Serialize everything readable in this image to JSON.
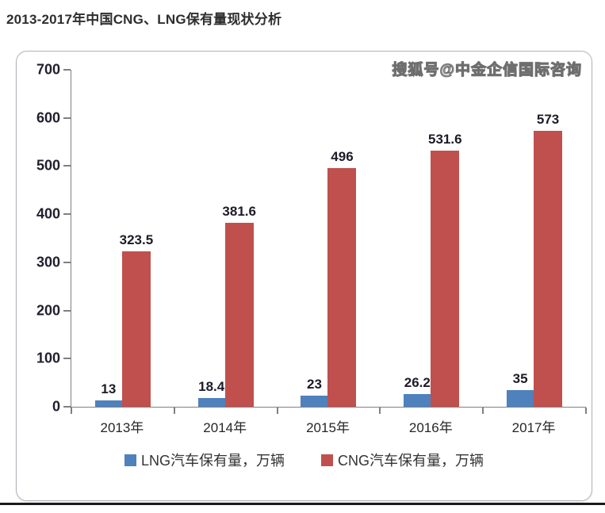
{
  "page": {
    "title": "2013-2017年中国CNG、LNG保有量现状分析",
    "watermark": "搜狐号@中金企信国际咨询"
  },
  "chart_data": {
    "type": "bar",
    "title": "2013-2017年中国CNG、LNG保有量现状分析",
    "categories": [
      "2013年",
      "2014年",
      "2015年",
      "2016年",
      "2017年"
    ],
    "series": [
      {
        "name": "LNG汽车保有量，万辆",
        "color": "#4F81BD",
        "values": [
          13,
          18.4,
          23,
          26.2,
          35
        ]
      },
      {
        "name": "CNG汽车保有量，万辆",
        "color": "#C0504D",
        "values": [
          323.5,
          381.6,
          496,
          531.6,
          573
        ]
      }
    ],
    "data_labels": [
      "13",
      "18.4",
      "23",
      "26.2",
      "35",
      "323.5",
      "381.6",
      "496",
      "531.6",
      "573"
    ],
    "ylim": [
      0,
      700
    ],
    "yticks": [
      0,
      100,
      200,
      300,
      400,
      500,
      600,
      700
    ],
    "grid": false,
    "legend_position": "bottom",
    "axis_color": "#808080"
  }
}
